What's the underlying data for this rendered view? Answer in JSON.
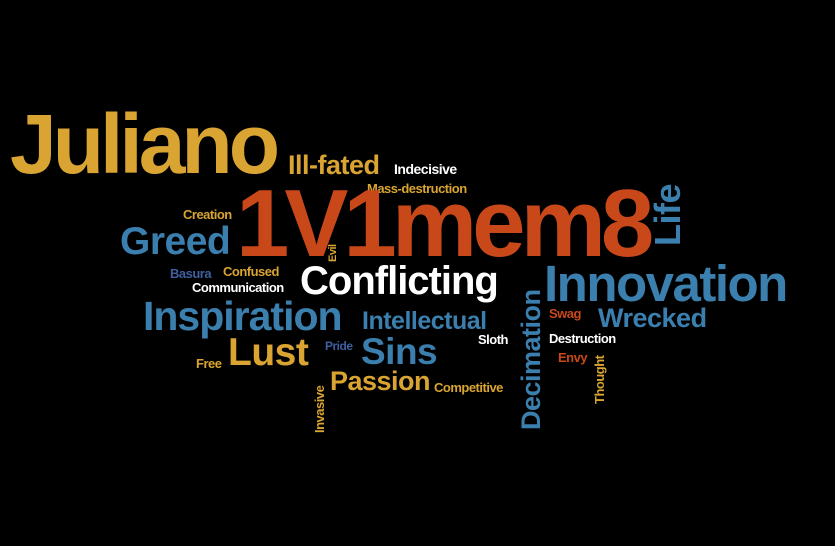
{
  "palette": {
    "background": "#000000",
    "gold": "#d9a431",
    "orange": "#c9481a",
    "blue": "#3b7fae",
    "white": "#ffffff",
    "dark_blue": "#3f5fa0"
  },
  "words": {
    "juliano": "Juliano",
    "ill_fated": "Ill-fated",
    "indecisive": "Indecisive",
    "mass_destruction": "Mass-destruction",
    "creation": "Creation",
    "title_word": "1V1mem8",
    "life": "Life",
    "greed": "Greed",
    "evil": "Evil",
    "basura": "Basura",
    "confused": "Confused",
    "communication": "Communication",
    "conflicting": "Conflicting",
    "innovation": "Innovation",
    "inspiration": "Inspiration",
    "intellectual": "Intellectual",
    "swag": "Swag",
    "wrecked": "Wrecked",
    "sloth": "Sloth",
    "destruction": "Destruction",
    "pride": "Pride",
    "lust": "Lust",
    "sins": "Sins",
    "decimation": "Decimation",
    "envy": "Envy",
    "free": "Free",
    "thought": "Thought",
    "invasive": "Invasive",
    "passion": "Passion",
    "competitive": "Competitive"
  }
}
